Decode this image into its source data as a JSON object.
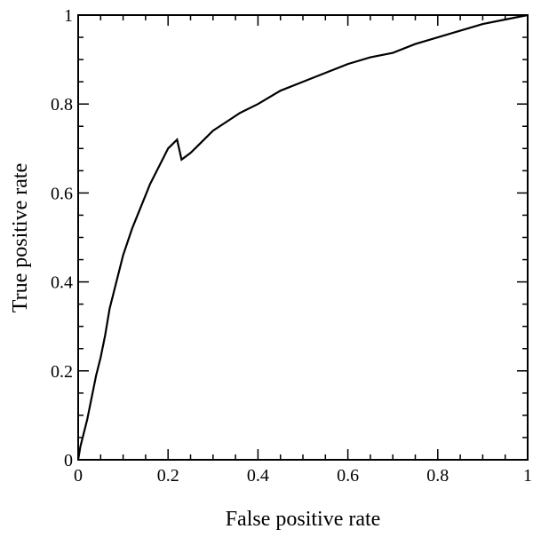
{
  "chart_data": {
    "type": "line",
    "xlabel": "False positive rate",
    "ylabel": "True positive rate",
    "xlim": [
      0,
      1
    ],
    "ylim": [
      0,
      1
    ],
    "x_ticks": [
      0,
      0.2,
      0.4,
      0.6,
      0.8,
      1
    ],
    "y_ticks": [
      0,
      0.2,
      0.4,
      0.6,
      0.8,
      1
    ],
    "x_tick_labels": [
      "0",
      "0.2",
      "0.4",
      "0.6",
      "0.8",
      "1"
    ],
    "y_tick_labels": [
      "0",
      "0.2",
      "0.4",
      "0.6",
      "0.8",
      "1"
    ],
    "grid": false,
    "line_color": "#000000",
    "series": [
      {
        "x": [
          0,
          0.005,
          0.01,
          0.02,
          0.03,
          0.04,
          0.05,
          0.06,
          0.07,
          0.08,
          0.09,
          0.1,
          0.11,
          0.12,
          0.13,
          0.14,
          0.15,
          0.16,
          0.17,
          0.18,
          0.19,
          0.2,
          0.21,
          0.22,
          0.23,
          0.25,
          0.27,
          0.3,
          0.33,
          0.36,
          0.4,
          0.45,
          0.5,
          0.55,
          0.6,
          0.65,
          0.7,
          0.75,
          0.8,
          0.85,
          0.9,
          0.95,
          1.0
        ],
        "y": [
          0,
          0.03,
          0.05,
          0.09,
          0.14,
          0.19,
          0.23,
          0.28,
          0.34,
          0.38,
          0.42,
          0.46,
          0.49,
          0.52,
          0.545,
          0.57,
          0.595,
          0.62,
          0.64,
          0.66,
          0.68,
          0.7,
          0.71,
          0.72,
          0.675,
          0.69,
          0.71,
          0.74,
          0.76,
          0.78,
          0.8,
          0.83,
          0.85,
          0.87,
          0.89,
          0.905,
          0.915,
          0.935,
          0.95,
          0.965,
          0.98,
          0.99,
          1.0
        ]
      }
    ]
  }
}
